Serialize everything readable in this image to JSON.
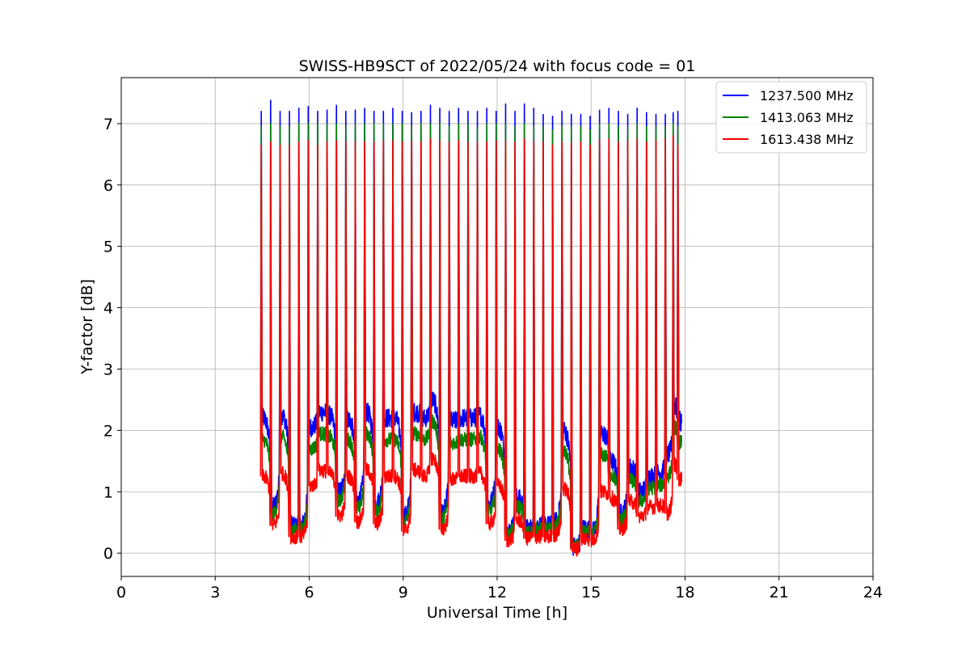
{
  "chart_data": {
    "type": "line",
    "title": "SWISS-HB9SCT of 2022/05/24 with focus code = 01",
    "xlabel": "Universal Time [h]",
    "ylabel": "Y-factor [dB]",
    "xlim": [
      0,
      24
    ],
    "ylim": [
      -0.38,
      7.75
    ],
    "xticks": [
      0,
      3,
      6,
      9,
      12,
      15,
      18,
      21,
      24
    ],
    "yticks": [
      0,
      1,
      2,
      3,
      4,
      5,
      6,
      7
    ],
    "grid": true,
    "legend_position": "top-right",
    "pulse_times": [
      4.45,
      4.75,
      5.05,
      5.35,
      5.65,
      5.95,
      6.25,
      6.55,
      6.85,
      7.15,
      7.45,
      7.75,
      8.05,
      8.35,
      8.65,
      8.95,
      9.25,
      9.55,
      9.85,
      10.15,
      10.45,
      10.75,
      11.05,
      11.35,
      11.65,
      11.95,
      12.25,
      12.55,
      12.85,
      13.15,
      13.45,
      13.75,
      14.05,
      14.35,
      14.65,
      14.95,
      15.25,
      15.55,
      15.85,
      16.15,
      16.45,
      16.75,
      17.05,
      17.35,
      17.6,
      17.75
    ],
    "series": [
      {
        "name": "1237.500 MHz",
        "color": "#0000ff",
        "peaks": [
          7.2,
          7.38,
          7.2,
          7.2,
          7.25,
          7.28,
          7.2,
          7.22,
          7.3,
          7.2,
          7.22,
          7.25,
          7.2,
          7.2,
          7.25,
          7.2,
          7.18,
          7.2,
          7.3,
          7.25,
          7.2,
          7.25,
          7.2,
          7.2,
          7.25,
          7.2,
          7.32,
          7.2,
          7.32,
          7.25,
          7.15,
          7.12,
          7.2,
          7.15,
          7.15,
          7.12,
          7.22,
          7.25,
          7.2,
          7.15,
          7.25,
          7.18,
          7.15,
          7.15,
          7.18,
          7.2
        ],
        "baselines": [
          2.2,
          0.75,
          2.25,
          0.45,
          0.45,
          2.05,
          2.3,
          2.25,
          1.0,
          2.2,
          0.85,
          2.3,
          0.8,
          2.2,
          2.2,
          0.6,
          2.3,
          2.2,
          2.5,
          0.65,
          2.15,
          2.2,
          2.2,
          2.25,
          0.8,
          2.05,
          0.35,
          0.9,
          0.4,
          0.45,
          0.45,
          0.5,
          2.0,
          0.1,
          0.4,
          0.35,
          1.95,
          1.5,
          0.65,
          1.4,
          1.0,
          1.25,
          1.3,
          1.6,
          2.4,
          2.15
        ]
      },
      {
        "name": "1413.063 MHz",
        "color": "#008000",
        "peaks": [
          6.95,
          7.0,
          6.95,
          6.95,
          7.0,
          7.0,
          7.0,
          7.0,
          7.0,
          6.95,
          7.0,
          7.0,
          7.0,
          7.0,
          7.0,
          7.0,
          6.95,
          7.0,
          7.0,
          7.0,
          6.95,
          7.0,
          7.0,
          6.95,
          7.0,
          7.0,
          7.0,
          6.95,
          7.0,
          6.95,
          6.95,
          6.9,
          6.95,
          6.95,
          6.95,
          6.9,
          7.0,
          7.0,
          6.95,
          6.95,
          7.0,
          6.95,
          6.95,
          6.95,
          7.0,
          6.95
        ]
      },
      {
        "name": "1613.438 MHz",
        "color": "#ff0000",
        "peaks": [
          6.65,
          6.7,
          6.65,
          6.65,
          6.7,
          6.72,
          6.65,
          6.7,
          6.72,
          6.7,
          6.7,
          6.7,
          6.7,
          6.72,
          6.72,
          6.7,
          6.72,
          6.7,
          6.75,
          6.72,
          6.7,
          6.72,
          6.7,
          6.7,
          6.7,
          6.72,
          6.72,
          6.7,
          6.75,
          6.72,
          6.7,
          6.65,
          6.7,
          6.68,
          6.7,
          6.65,
          6.75,
          6.75,
          6.7,
          6.72,
          6.75,
          6.7,
          6.72,
          6.75,
          6.8,
          6.65
        ]
      }
    ]
  }
}
